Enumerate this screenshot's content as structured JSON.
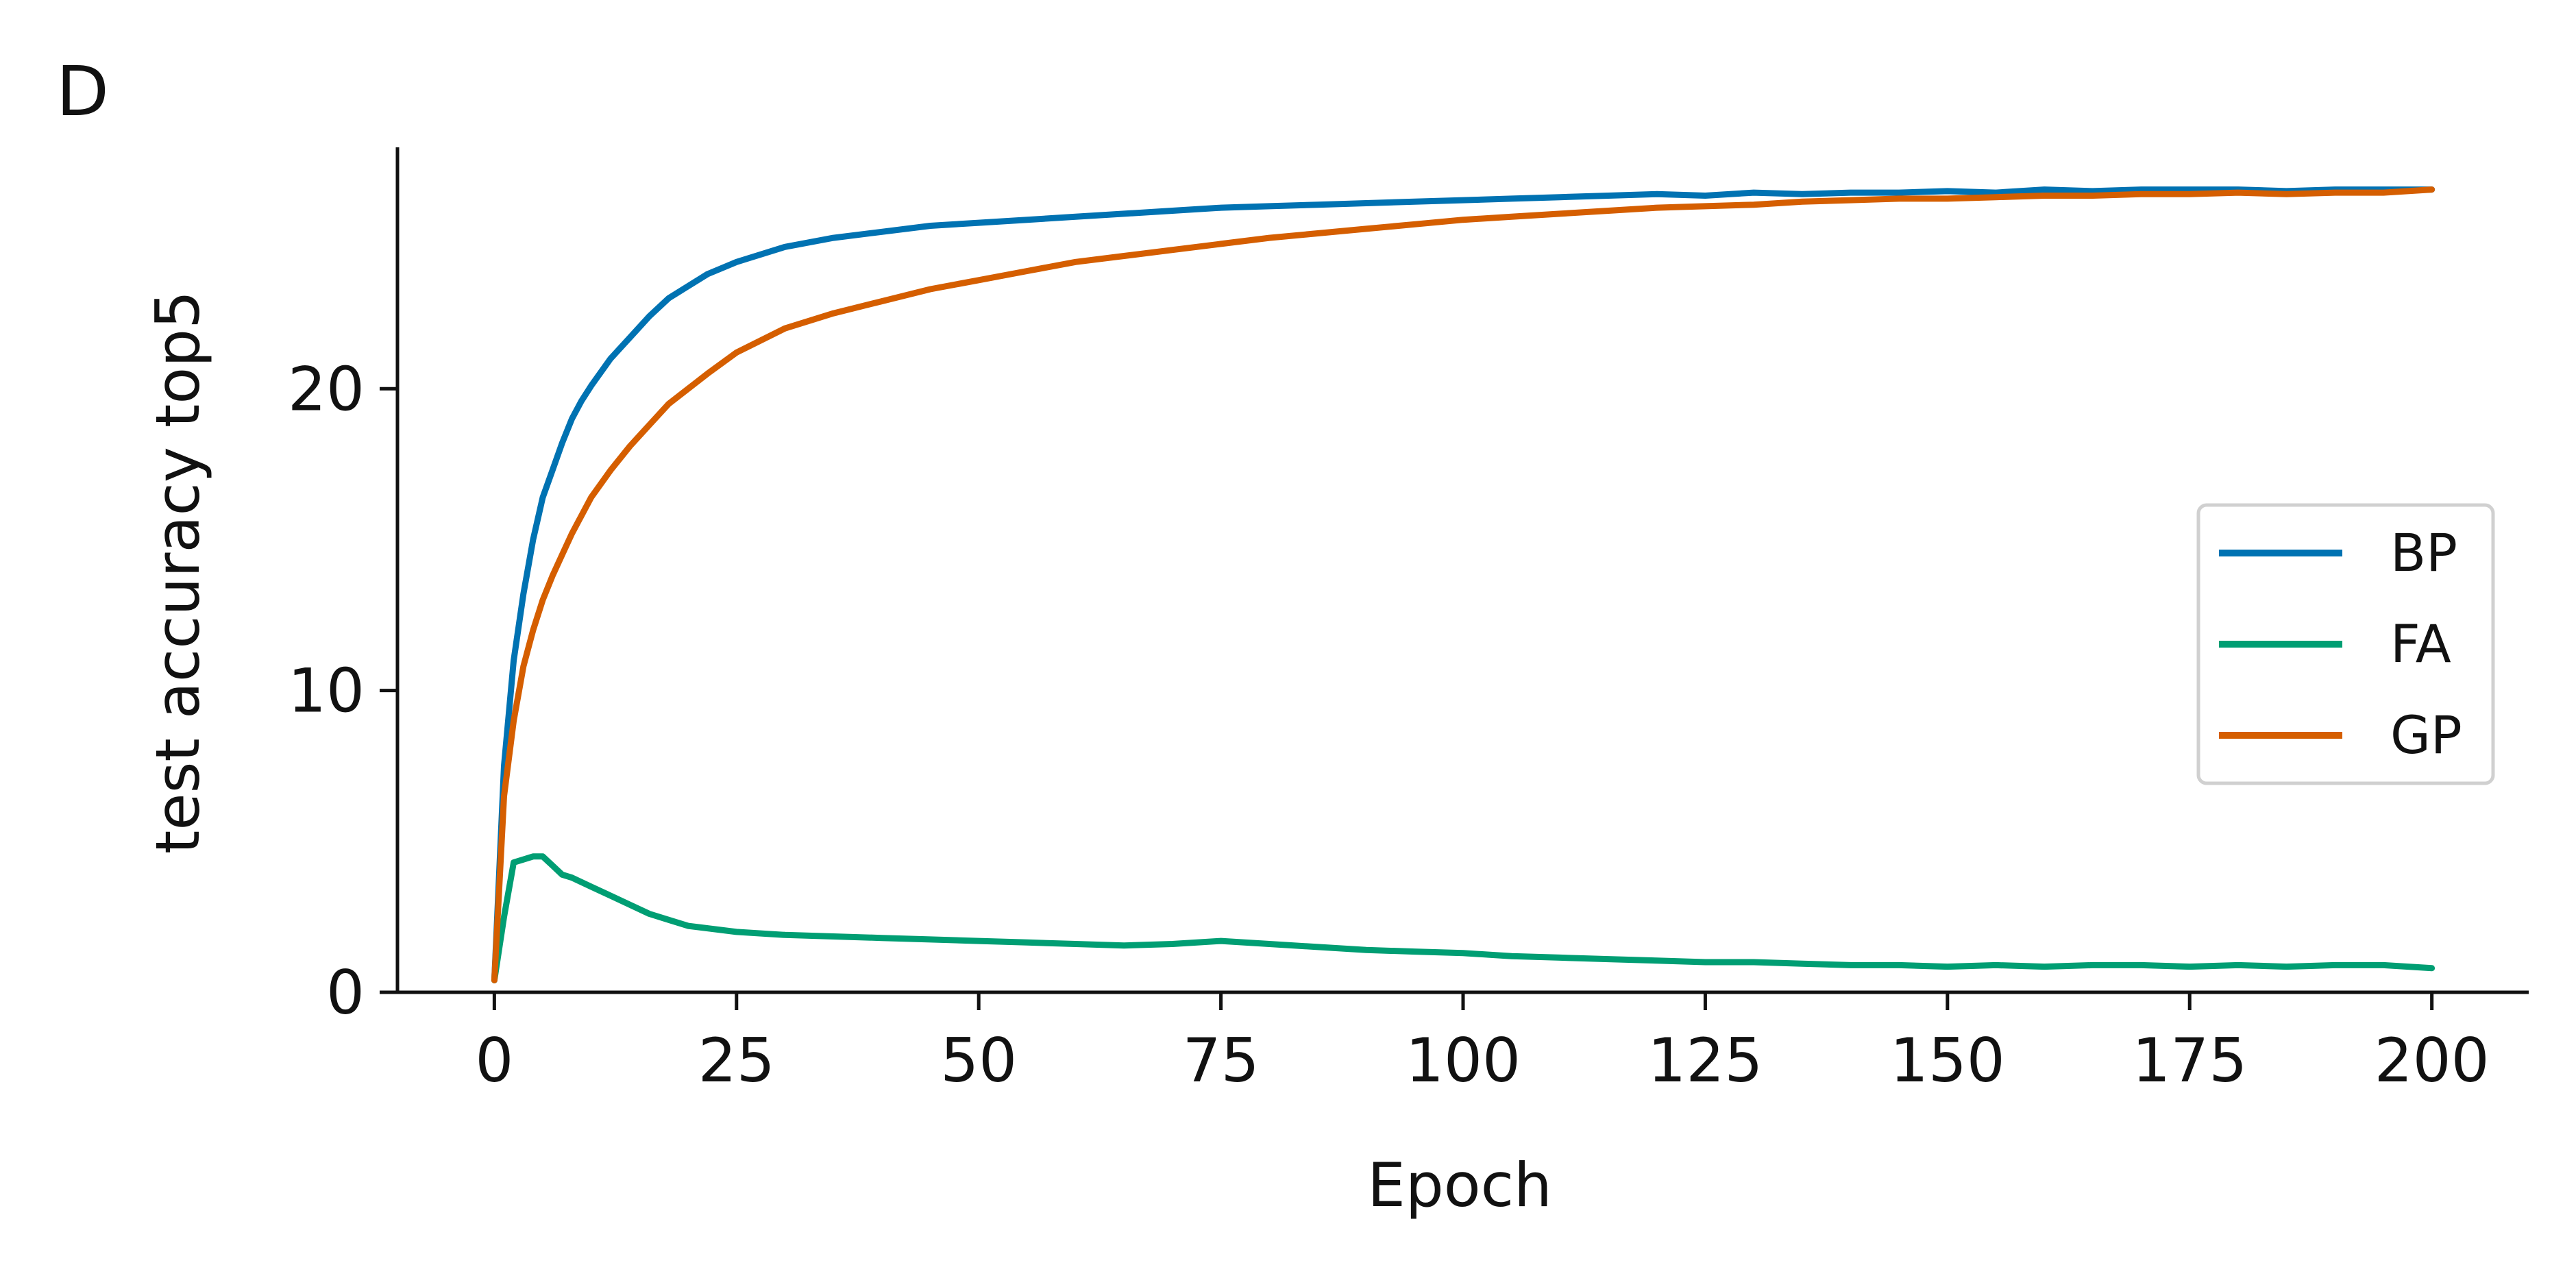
{
  "panel_label": "D",
  "chart_data": {
    "type": "line",
    "title": "",
    "xlabel": "Epoch",
    "ylabel": "test accuracy top5",
    "xlim": [
      -10,
      210
    ],
    "ylim": [
      0,
      28
    ],
    "xticks": [
      0,
      25,
      50,
      75,
      100,
      125,
      150,
      175,
      200
    ],
    "yticks": [
      0,
      10,
      20
    ],
    "grid": false,
    "legend_position": "right",
    "series": [
      {
        "name": "BP",
        "color": "#0072B2",
        "x": [
          0,
          1,
          2,
          3,
          4,
          5,
          6,
          7,
          8,
          9,
          10,
          12,
          14,
          16,
          18,
          20,
          22,
          25,
          30,
          35,
          40,
          45,
          50,
          55,
          60,
          65,
          70,
          75,
          80,
          85,
          90,
          95,
          100,
          105,
          110,
          115,
          120,
          125,
          130,
          135,
          140,
          145,
          150,
          155,
          160,
          165,
          170,
          175,
          180,
          185,
          190,
          195,
          200
        ],
        "y": [
          0.4,
          7.5,
          11.0,
          13.2,
          15.0,
          16.4,
          17.3,
          18.2,
          19.0,
          19.6,
          20.1,
          21.0,
          21.7,
          22.4,
          23.0,
          23.4,
          23.8,
          24.2,
          24.7,
          25.0,
          25.2,
          25.4,
          25.5,
          25.6,
          25.7,
          25.8,
          25.9,
          26.0,
          26.05,
          26.1,
          26.15,
          26.2,
          26.25,
          26.3,
          26.35,
          26.4,
          26.45,
          26.4,
          26.5,
          26.45,
          26.5,
          26.5,
          26.55,
          26.5,
          26.6,
          26.55,
          26.6,
          26.6,
          26.6,
          26.55,
          26.6,
          26.6,
          26.6
        ]
      },
      {
        "name": "FA",
        "color": "#009E73",
        "x": [
          0,
          1,
          2,
          3,
          4,
          5,
          6,
          7,
          8,
          10,
          12,
          14,
          16,
          18,
          20,
          25,
          30,
          35,
          40,
          45,
          50,
          55,
          60,
          65,
          70,
          75,
          80,
          85,
          90,
          95,
          100,
          105,
          110,
          115,
          120,
          125,
          130,
          135,
          140,
          145,
          150,
          155,
          160,
          165,
          170,
          175,
          180,
          185,
          190,
          195,
          200
        ],
        "y": [
          0.4,
          2.5,
          4.3,
          4.4,
          4.5,
          4.5,
          4.2,
          3.9,
          3.8,
          3.5,
          3.2,
          2.9,
          2.6,
          2.4,
          2.2,
          2.0,
          1.9,
          1.85,
          1.8,
          1.75,
          1.7,
          1.65,
          1.6,
          1.55,
          1.6,
          1.7,
          1.6,
          1.5,
          1.4,
          1.35,
          1.3,
          1.2,
          1.15,
          1.1,
          1.05,
          1.0,
          1.0,
          0.95,
          0.9,
          0.9,
          0.85,
          0.9,
          0.85,
          0.9,
          0.9,
          0.85,
          0.9,
          0.85,
          0.9,
          0.9,
          0.8
        ]
      },
      {
        "name": "GP",
        "color": "#D55E00",
        "x": [
          0,
          1,
          2,
          3,
          4,
          5,
          6,
          7,
          8,
          9,
          10,
          12,
          14,
          16,
          18,
          20,
          22,
          25,
          30,
          35,
          40,
          45,
          50,
          55,
          60,
          65,
          70,
          75,
          80,
          85,
          90,
          95,
          100,
          105,
          110,
          115,
          120,
          125,
          130,
          135,
          140,
          145,
          150,
          155,
          160,
          165,
          170,
          175,
          180,
          185,
          190,
          195,
          200
        ],
        "y": [
          0.4,
          6.5,
          9.0,
          10.8,
          12.0,
          13.0,
          13.8,
          14.5,
          15.2,
          15.8,
          16.4,
          17.3,
          18.1,
          18.8,
          19.5,
          20.0,
          20.5,
          21.2,
          22.0,
          22.5,
          22.9,
          23.3,
          23.6,
          23.9,
          24.2,
          24.4,
          24.6,
          24.8,
          25.0,
          25.15,
          25.3,
          25.45,
          25.6,
          25.7,
          25.8,
          25.9,
          26.0,
          26.05,
          26.1,
          26.2,
          26.25,
          26.3,
          26.3,
          26.35,
          26.4,
          26.4,
          26.45,
          26.45,
          26.5,
          26.45,
          26.5,
          26.5,
          26.6
        ]
      }
    ]
  }
}
